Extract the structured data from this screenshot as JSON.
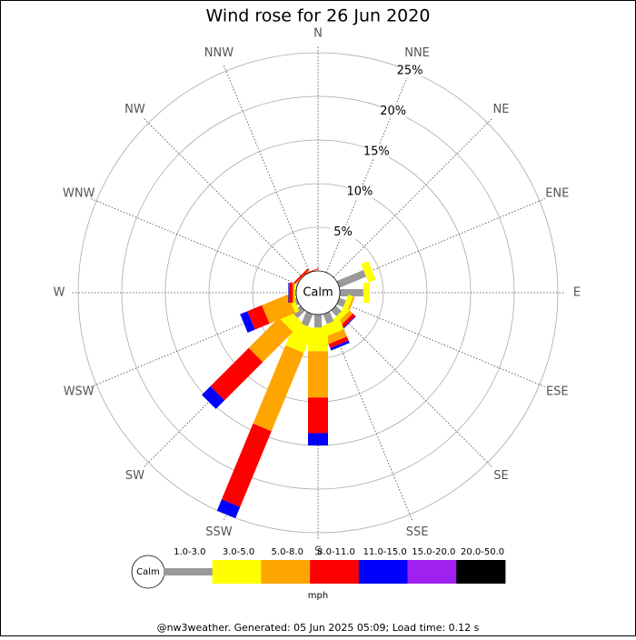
{
  "chart_data": {
    "type": "windrose",
    "title": "Wind rose for 26 Jun 2020",
    "directions": [
      "N",
      "NNE",
      "NE",
      "ENE",
      "E",
      "ESE",
      "SE",
      "SSE",
      "S",
      "SSW",
      "SW",
      "WSW",
      "W",
      "WNW",
      "NW",
      "NNW"
    ],
    "rlim": [
      0,
      25
    ],
    "rticks": [
      {
        "value": 5,
        "label": "5%"
      },
      {
        "value": 10,
        "label": "10%"
      },
      {
        "value": 15,
        "label": "15%"
      },
      {
        "value": 20,
        "label": "20%"
      },
      {
        "value": 25,
        "label": "25%"
      }
    ],
    "calm_label": "Calm",
    "unit": "mph",
    "series": [
      {
        "name": "1.0-3.0",
        "color": "#999999",
        "values": [
          0,
          0,
          0,
          3.3,
          2.7,
          0.8,
          0.9,
          1.2,
          1.5,
          1.5,
          1.2,
          0.3,
          0.1,
          0.1,
          0,
          0
        ]
      },
      {
        "name": "3.0-5.0",
        "color": "#ffff00",
        "values": [
          0,
          0,
          0,
          0.9,
          0.7,
          0.6,
          0.6,
          1.3,
          2.7,
          3.0,
          1.5,
          0.5,
          0.1,
          0,
          0,
          0
        ]
      },
      {
        "name": "5.0-8.0",
        "color": "#ffa500",
        "values": [
          0,
          0,
          0,
          0,
          0,
          0.2,
          0.5,
          0.9,
          5.3,
          9.7,
          4.9,
          3.2,
          0.2,
          0,
          0.1,
          0
        ]
      },
      {
        "name": "8.0-11.0",
        "color": "#ff0000",
        "values": [
          0,
          0,
          0,
          0,
          0,
          0,
          0.4,
          0.5,
          4.1,
          9.4,
          6.2,
          1.8,
          0.4,
          0,
          0.2,
          0.1
        ]
      },
      {
        "name": "11.0-15.0",
        "color": "#0000ff",
        "values": [
          0,
          0,
          0,
          0,
          0,
          0,
          0.1,
          0.3,
          1.4,
          1.4,
          1.4,
          0.9,
          0.1,
          0,
          0,
          0
        ]
      },
      {
        "name": "15.0-20.0",
        "color": "#a020f0",
        "values": [
          0,
          0,
          0,
          0,
          0,
          0,
          0,
          0,
          0,
          0,
          0,
          0,
          0,
          0,
          0,
          0
        ]
      },
      {
        "name": "20.0-50.0",
        "color": "#000000",
        "values": [
          0,
          0,
          0,
          0,
          0,
          0,
          0,
          0,
          0,
          0,
          0,
          0,
          0,
          0,
          0,
          0
        ]
      }
    ],
    "footer": "@nw3weather. Generated: 05 Jun 2025 05:09; Load time: 0.12 s"
  }
}
